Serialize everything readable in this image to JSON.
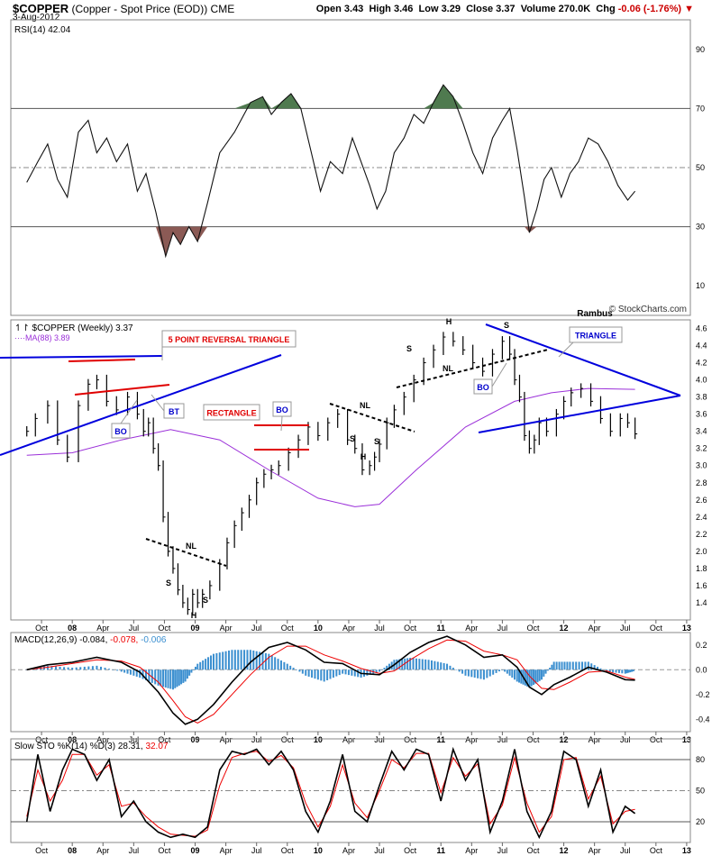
{
  "header": {
    "symbol": "$COPPER",
    "description": "(Copper - Spot Price (EOD))",
    "exchange": "CME",
    "date": "3-Aug-2012",
    "open_label": "Open",
    "open": "3.43",
    "high_label": "High",
    "high": "3.46",
    "low_label": "Low",
    "low": "3.29",
    "close_label": "Close",
    "close": "3.37",
    "volume_label": "Volume",
    "volume": "270.0K",
    "chg_label": "Chg",
    "chg": "-0.06 (-1.76%)"
  },
  "watermark": "© StockCharts.com",
  "author": "Rambus",
  "chart_data": [
    {
      "type": "line",
      "panel": "rsi",
      "legend": "RSI(14) 42.04",
      "ylim": [
        0,
        100
      ],
      "y_ticks": [
        10,
        30,
        50,
        70,
        90
      ],
      "reference_lines": [
        30,
        50,
        70
      ],
      "x": [
        2007.63,
        2007.72,
        2007.8,
        2007.88,
        2007.96,
        2008.05,
        2008.13,
        2008.2,
        2008.28,
        2008.36,
        2008.45,
        2008.53,
        2008.6,
        2008.68,
        2008.76,
        2008.82,
        2008.88,
        2008.95,
        2009.02,
        2009.1,
        2009.2,
        2009.32,
        2009.45,
        2009.55,
        2009.62,
        2009.7,
        2009.78,
        2009.86,
        2009.94,
        2010.02,
        2010.1,
        2010.2,
        2010.28,
        2010.35,
        2010.42,
        2010.48,
        2010.55,
        2010.62,
        2010.7,
        2010.78,
        2010.86,
        2010.94,
        2011.02,
        2011.1,
        2011.18,
        2011.26,
        2011.34,
        2011.42,
        2011.5,
        2011.56,
        2011.62,
        2011.68,
        2011.72,
        2011.78,
        2011.84,
        2011.9,
        2011.98,
        2012.05,
        2012.12,
        2012.2,
        2012.28,
        2012.36,
        2012.44,
        2012.52,
        2012.58
      ],
      "values": [
        45,
        52,
        58,
        46,
        40,
        62,
        66,
        55,
        60,
        52,
        58,
        42,
        48,
        35,
        20,
        28,
        24,
        30,
        25,
        38,
        55,
        62,
        72,
        74,
        68,
        72,
        75,
        70,
        56,
        42,
        52,
        48,
        60,
        52,
        44,
        36,
        42,
        55,
        60,
        68,
        65,
        72,
        78,
        74,
        65,
        55,
        48,
        60,
        66,
        70,
        56,
        40,
        28,
        36,
        46,
        50,
        40,
        48,
        52,
        60,
        58,
        52,
        44,
        39,
        42
      ]
    },
    {
      "type": "ohlc",
      "panel": "price",
      "legend_series": "$COPPER (Weekly) 3.37",
      "legend_ma": "MA(88) 3.89",
      "colors": {
        "bars": "#000000",
        "ma": "#9b30d9",
        "trend": "#0000dd",
        "levels": "#e00000"
      },
      "ylim": [
        1.2,
        4.7
      ],
      "y_ticks": [
        1.4,
        1.6,
        1.8,
        2.0,
        2.2,
        2.4,
        2.6,
        2.8,
        3.0,
        3.2,
        3.4,
        3.6,
        3.8,
        4.0,
        4.2,
        4.4,
        4.6
      ],
      "x": [
        2007.63,
        2007.7,
        2007.8,
        2007.88,
        2007.96,
        2008.05,
        2008.13,
        2008.2,
        2008.28,
        2008.36,
        2008.45,
        2008.53,
        2008.58,
        2008.62,
        2008.66,
        2008.7,
        2008.74,
        2008.78,
        2008.82,
        2008.86,
        2008.9,
        2008.94,
        2008.98,
        2009.02,
        2009.06,
        2009.12,
        2009.2,
        2009.26,
        2009.32,
        2009.38,
        2009.44,
        2009.5,
        2009.56,
        2009.62,
        2009.68,
        2009.76,
        2009.84,
        2009.92,
        2010.0,
        2010.08,
        2010.16,
        2010.24,
        2010.3,
        2010.36,
        2010.42,
        2010.46,
        2010.5,
        2010.56,
        2010.62,
        2010.7,
        2010.78,
        2010.86,
        2010.94,
        2011.02,
        2011.1,
        2011.18,
        2011.26,
        2011.34,
        2011.42,
        2011.5,
        2011.56,
        2011.6,
        2011.64,
        2011.68,
        2011.72,
        2011.76,
        2011.8,
        2011.86,
        2011.94,
        2012.0,
        2012.06,
        2012.14,
        2012.22,
        2012.3,
        2012.38,
        2012.46,
        2012.52,
        2012.58
      ],
      "values": [
        3.4,
        3.55,
        3.7,
        3.3,
        3.1,
        3.7,
        3.95,
        4.0,
        3.75,
        3.65,
        3.8,
        3.6,
        3.4,
        3.5,
        3.2,
        3.0,
        2.4,
        2.0,
        1.8,
        1.55,
        1.4,
        1.32,
        1.5,
        1.4,
        1.5,
        1.6,
        1.85,
        2.1,
        2.3,
        2.45,
        2.6,
        2.8,
        2.9,
        2.95,
        3.0,
        3.15,
        3.3,
        3.45,
        3.35,
        3.5,
        3.6,
        3.3,
        3.2,
        2.95,
        3.0,
        3.1,
        3.25,
        3.5,
        3.65,
        3.8,
        4.0,
        4.2,
        4.35,
        4.5,
        4.45,
        4.35,
        4.2,
        4.1,
        4.3,
        4.45,
        4.3,
        4.0,
        3.8,
        3.35,
        3.2,
        3.3,
        3.5,
        3.4,
        3.6,
        3.75,
        3.85,
        3.9,
        3.75,
        3.55,
        3.4,
        3.55,
        3.5,
        3.37
      ],
      "ma_x": [
        2007.63,
        2008.0,
        2008.4,
        2008.8,
        2009.2,
        2009.6,
        2010.0,
        2010.3,
        2010.5,
        2010.8,
        2011.2,
        2011.6,
        2011.9,
        2012.2,
        2012.58
      ],
      "ma_values": [
        3.12,
        3.15,
        3.3,
        3.42,
        3.3,
        2.95,
        2.62,
        2.52,
        2.55,
        2.95,
        3.45,
        3.75,
        3.85,
        3.9,
        3.89
      ],
      "annotations": [
        "5 POINT REVERSAL TRIANGLE",
        "BO",
        "BT",
        "RECTANGLE",
        "BO",
        "NL",
        "S",
        "S",
        "H",
        "NL",
        "S",
        "S",
        "H",
        "S",
        "H",
        "S",
        "NL",
        "BO",
        "TRIANGLE"
      ]
    },
    {
      "type": "line",
      "panel": "macd",
      "legend_prefix": "MACD(12,26,9)",
      "legend_values": [
        "-0.084",
        "-0.078",
        "-0.006"
      ],
      "ylim": [
        -0.5,
        0.3
      ],
      "y_ticks": [
        -0.4,
        -0.2,
        0.0,
        0.2
      ],
      "x": [
        2007.63,
        2007.8,
        2008.0,
        2008.2,
        2008.4,
        2008.55,
        2008.7,
        2008.82,
        2008.92,
        2009.02,
        2009.15,
        2009.3,
        2009.45,
        2009.6,
        2009.75,
        2009.9,
        2010.05,
        2010.2,
        2010.35,
        2010.5,
        2010.62,
        2010.75,
        2010.9,
        2011.05,
        2011.2,
        2011.35,
        2011.5,
        2011.62,
        2011.72,
        2011.82,
        2011.92,
        2012.05,
        2012.2,
        2012.35,
        2012.5,
        2012.58
      ],
      "series": [
        {
          "values": [
            0.0,
            0.04,
            0.06,
            0.1,
            0.06,
            -0.02,
            -0.18,
            -0.35,
            -0.44,
            -0.4,
            -0.28,
            -0.1,
            0.06,
            0.18,
            0.22,
            0.16,
            0.06,
            0.05,
            -0.03,
            -0.04,
            0.04,
            0.14,
            0.22,
            0.27,
            0.2,
            0.1,
            0.12,
            0.02,
            -0.14,
            -0.2,
            -0.12,
            -0.06,
            0.02,
            -0.02,
            -0.08,
            -0.084
          ],
          "color": "#000000"
        },
        {
          "values": [
            0.0,
            0.02,
            0.05,
            0.08,
            0.07,
            0.02,
            -0.1,
            -0.25,
            -0.38,
            -0.43,
            -0.36,
            -0.2,
            -0.04,
            0.1,
            0.19,
            0.19,
            0.12,
            0.07,
            0.01,
            -0.03,
            -0.01,
            0.08,
            0.17,
            0.24,
            0.23,
            0.15,
            0.12,
            0.08,
            -0.05,
            -0.15,
            -0.16,
            -0.1,
            -0.02,
            -0.01,
            -0.06,
            -0.078
          ],
          "color": "#ee0000"
        }
      ]
    },
    {
      "type": "line",
      "panel": "stochastic",
      "legend_prefix": "Slow STO %K(14) %D(3)",
      "legend_values": [
        "28.31",
        "32.07"
      ],
      "ylim": [
        0,
        100
      ],
      "y_ticks": [
        20,
        50,
        80
      ],
      "reference_lines": [
        20,
        50,
        80
      ],
      "x": [
        2007.63,
        2007.72,
        2007.82,
        2007.92,
        2008.0,
        2008.1,
        2008.2,
        2008.3,
        2008.4,
        2008.5,
        2008.6,
        2008.7,
        2008.8,
        2008.9,
        2009.0,
        2009.1,
        2009.2,
        2009.3,
        2009.4,
        2009.5,
        2009.6,
        2009.7,
        2009.8,
        2009.9,
        2010.0,
        2010.1,
        2010.2,
        2010.3,
        2010.4,
        2010.5,
        2010.6,
        2010.7,
        2010.8,
        2010.9,
        2011.0,
        2011.1,
        2011.2,
        2011.3,
        2011.4,
        2011.5,
        2011.6,
        2011.7,
        2011.8,
        2011.9,
        2012.0,
        2012.1,
        2012.2,
        2012.3,
        2012.4,
        2012.5,
        2012.58
      ],
      "series": [
        {
          "values": [
            20,
            85,
            30,
            70,
            90,
            85,
            60,
            80,
            25,
            40,
            20,
            10,
            5,
            8,
            5,
            15,
            70,
            88,
            85,
            90,
            75,
            88,
            70,
            30,
            10,
            40,
            85,
            30,
            20,
            55,
            88,
            70,
            90,
            85,
            40,
            90,
            60,
            80,
            10,
            40,
            90,
            30,
            5,
            30,
            88,
            80,
            35,
            70,
            10,
            35,
            28
          ],
          "color": "#000000"
        },
        {
          "values": [
            25,
            70,
            40,
            60,
            85,
            85,
            65,
            75,
            35,
            38,
            25,
            15,
            8,
            7,
            6,
            12,
            55,
            82,
            86,
            88,
            78,
            84,
            72,
            38,
            15,
            35,
            75,
            38,
            24,
            50,
            80,
            72,
            86,
            86,
            48,
            82,
            64,
            76,
            18,
            36,
            82,
            38,
            10,
            25,
            80,
            82,
            42,
            64,
            18,
            30,
            32
          ],
          "color": "#ee0000"
        }
      ]
    }
  ],
  "x_axis": {
    "ticks": [
      {
        "x": 2007.75,
        "label": "Oct"
      },
      {
        "x": 2008.0,
        "label": "08"
      },
      {
        "x": 2008.25,
        "label": "Apr"
      },
      {
        "x": 2008.5,
        "label": "Jul"
      },
      {
        "x": 2008.75,
        "label": "Oct"
      },
      {
        "x": 2009.0,
        "label": "09"
      },
      {
        "x": 2009.25,
        "label": "Apr"
      },
      {
        "x": 2009.5,
        "label": "Jul"
      },
      {
        "x": 2009.75,
        "label": "Oct"
      },
      {
        "x": 2010.0,
        "label": "10"
      },
      {
        "x": 2010.25,
        "label": "Apr"
      },
      {
        "x": 2010.5,
        "label": "Jul"
      },
      {
        "x": 2010.75,
        "label": "Oct"
      },
      {
        "x": 2011.0,
        "label": "11"
      },
      {
        "x": 2011.25,
        "label": "Apr"
      },
      {
        "x": 2011.5,
        "label": "Jul"
      },
      {
        "x": 2011.75,
        "label": "Oct"
      },
      {
        "x": 2012.0,
        "label": "12"
      },
      {
        "x": 2012.25,
        "label": "Apr"
      },
      {
        "x": 2012.5,
        "label": "Jul"
      },
      {
        "x": 2012.75,
        "label": "Oct"
      },
      {
        "x": 2013.0,
        "label": "13"
      }
    ],
    "xlim": [
      2007.5,
      2013.03
    ]
  }
}
